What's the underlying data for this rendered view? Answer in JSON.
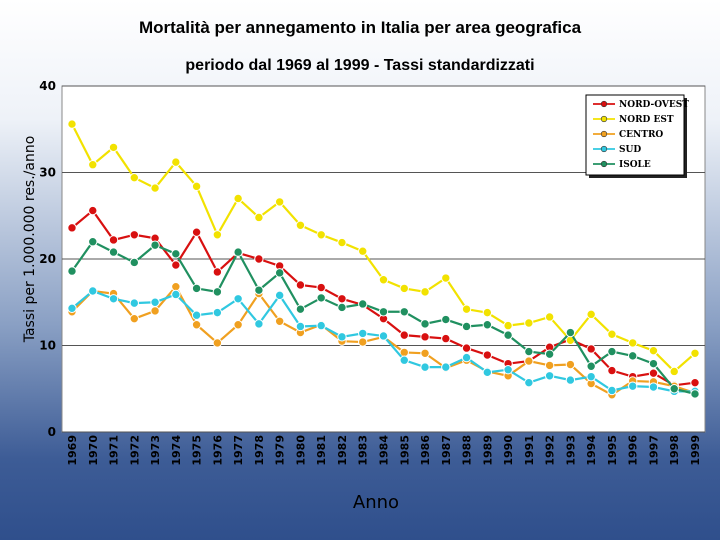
{
  "chart_data": {
    "type": "line",
    "title": "Mortalità per annegamento in Italia per area geografica",
    "subtitle": "periodo dal 1969 al 1999 - Tassi standardizzati",
    "xlabel": "Anno",
    "ylabel": "Tassi per 1.000.000 res./anno",
    "ylim": [
      0,
      40
    ],
    "yticks": [
      "0",
      "10",
      "20",
      "30",
      "40"
    ],
    "grid": true,
    "legend_position": "top-right",
    "x": [
      "1969",
      "1970",
      "1971",
      "1972",
      "1973",
      "1974",
      "1975",
      "1976",
      "1977",
      "1978",
      "1979",
      "1980",
      "1981",
      "1982",
      "1983",
      "1984",
      "1985",
      "1986",
      "1987",
      "1988",
      "1989",
      "1990",
      "1991",
      "1992",
      "1993",
      "1994",
      "1995",
      "1996",
      "1997",
      "1998",
      "1999"
    ],
    "series": [
      {
        "name": "NORD-OVEST",
        "color": "#d81010",
        "values": [
          23.6,
          25.6,
          22.2,
          22.8,
          22.4,
          19.3,
          23.1,
          18.5,
          20.7,
          20.0,
          19.2,
          17.0,
          16.7,
          15.4,
          14.7,
          13.1,
          11.2,
          11.0,
          10.8,
          9.7,
          8.9,
          7.9,
          8.2,
          9.8,
          10.7,
          9.6,
          7.1,
          6.4,
          6.8,
          5.4,
          5.7
        ]
      },
      {
        "name": "NORD EST",
        "color": "#f2e200",
        "values": [
          35.6,
          30.9,
          32.9,
          29.4,
          28.2,
          31.2,
          28.4,
          22.8,
          27.0,
          24.8,
          26.6,
          23.9,
          22.8,
          21.9,
          20.9,
          17.6,
          16.6,
          16.2,
          17.8,
          14.2,
          13.8,
          12.3,
          12.6,
          13.3,
          10.6,
          13.6,
          11.3,
          10.3,
          9.4,
          7.0,
          9.1
        ]
      },
      {
        "name": "CENTRO",
        "color": "#f0a020",
        "values": [
          13.9,
          16.3,
          16.0,
          13.1,
          14.0,
          16.8,
          12.4,
          10.3,
          12.4,
          16.0,
          12.8,
          11.5,
          12.4,
          10.5,
          10.4,
          11.0,
          9.2,
          9.1,
          7.4,
          8.3,
          7.0,
          6.5,
          8.2,
          7.7,
          7.8,
          5.6,
          4.3,
          5.9,
          5.8,
          5.3,
          4.5
        ]
      },
      {
        "name": "SUD",
        "color": "#30c8e0",
        "values": [
          14.3,
          16.3,
          15.4,
          14.9,
          15.0,
          15.9,
          13.5,
          13.8,
          15.4,
          12.5,
          15.8,
          12.2,
          12.3,
          11.0,
          11.4,
          11.1,
          8.3,
          7.5,
          7.5,
          8.6,
          6.9,
          7.2,
          5.7,
          6.5,
          6.0,
          6.4,
          4.8,
          5.3,
          5.2,
          4.7,
          4.7
        ]
      },
      {
        "name": "ISOLE",
        "color": "#209060",
        "values": [
          18.6,
          22.0,
          20.8,
          19.6,
          21.6,
          20.6,
          16.6,
          16.2,
          20.8,
          16.4,
          18.4,
          14.2,
          15.5,
          14.4,
          14.8,
          13.9,
          13.9,
          12.5,
          13.0,
          12.2,
          12.4,
          11.2,
          9.3,
          9.0,
          11.5,
          7.6,
          9.3,
          8.8,
          7.9,
          5.0,
          4.4
        ]
      }
    ]
  }
}
